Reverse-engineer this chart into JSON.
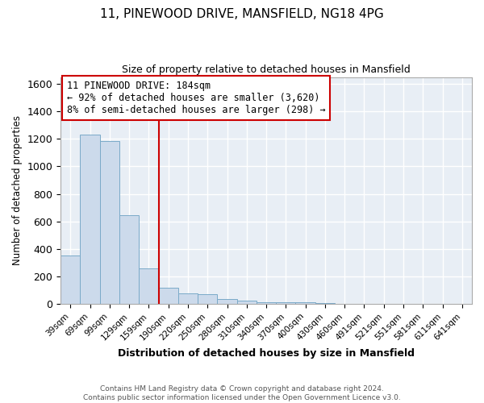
{
  "title1": "11, PINEWOOD DRIVE, MANSFIELD, NG18 4PG",
  "title2": "Size of property relative to detached houses in Mansfield",
  "xlabel": "Distribution of detached houses by size in Mansfield",
  "ylabel": "Number of detached properties",
  "footer1": "Contains HM Land Registry data © Crown copyright and database right 2024.",
  "footer2": "Contains public sector information licensed under the Open Government Licence v3.0.",
  "annotation_line1": "11 PINEWOOD DRIVE: 184sqm",
  "annotation_line2": "← 92% of detached houses are smaller (3,620)",
  "annotation_line3": "8% of semi-detached houses are larger (298) →",
  "bar_color": "#ccdaeb",
  "bar_edge_color": "#7aaac8",
  "vline_color": "#cc0000",
  "categories": [
    "39sqm",
    "69sqm",
    "99sqm",
    "129sqm",
    "159sqm",
    "190sqm",
    "220sqm",
    "250sqm",
    "280sqm",
    "310sqm",
    "340sqm",
    "370sqm",
    "400sqm",
    "430sqm",
    "460sqm",
    "491sqm",
    "521sqm",
    "551sqm",
    "581sqm",
    "611sqm",
    "641sqm"
  ],
  "values": [
    350,
    1230,
    1185,
    645,
    260,
    120,
    75,
    68,
    35,
    22,
    15,
    12,
    10,
    8,
    0,
    0,
    0,
    0,
    0,
    0,
    0
  ],
  "ylim": [
    0,
    1650
  ],
  "yticks": [
    0,
    200,
    400,
    600,
    800,
    1000,
    1200,
    1400,
    1600
  ],
  "background_color": "#ffffff",
  "plot_bg_color": "#e8eef5",
  "grid_color": "#ffffff",
  "annotation_box_color": "#ffffff",
  "annotation_box_edge": "#cc0000",
  "figsize": [
    6.0,
    5.0
  ],
  "dpi": 100
}
